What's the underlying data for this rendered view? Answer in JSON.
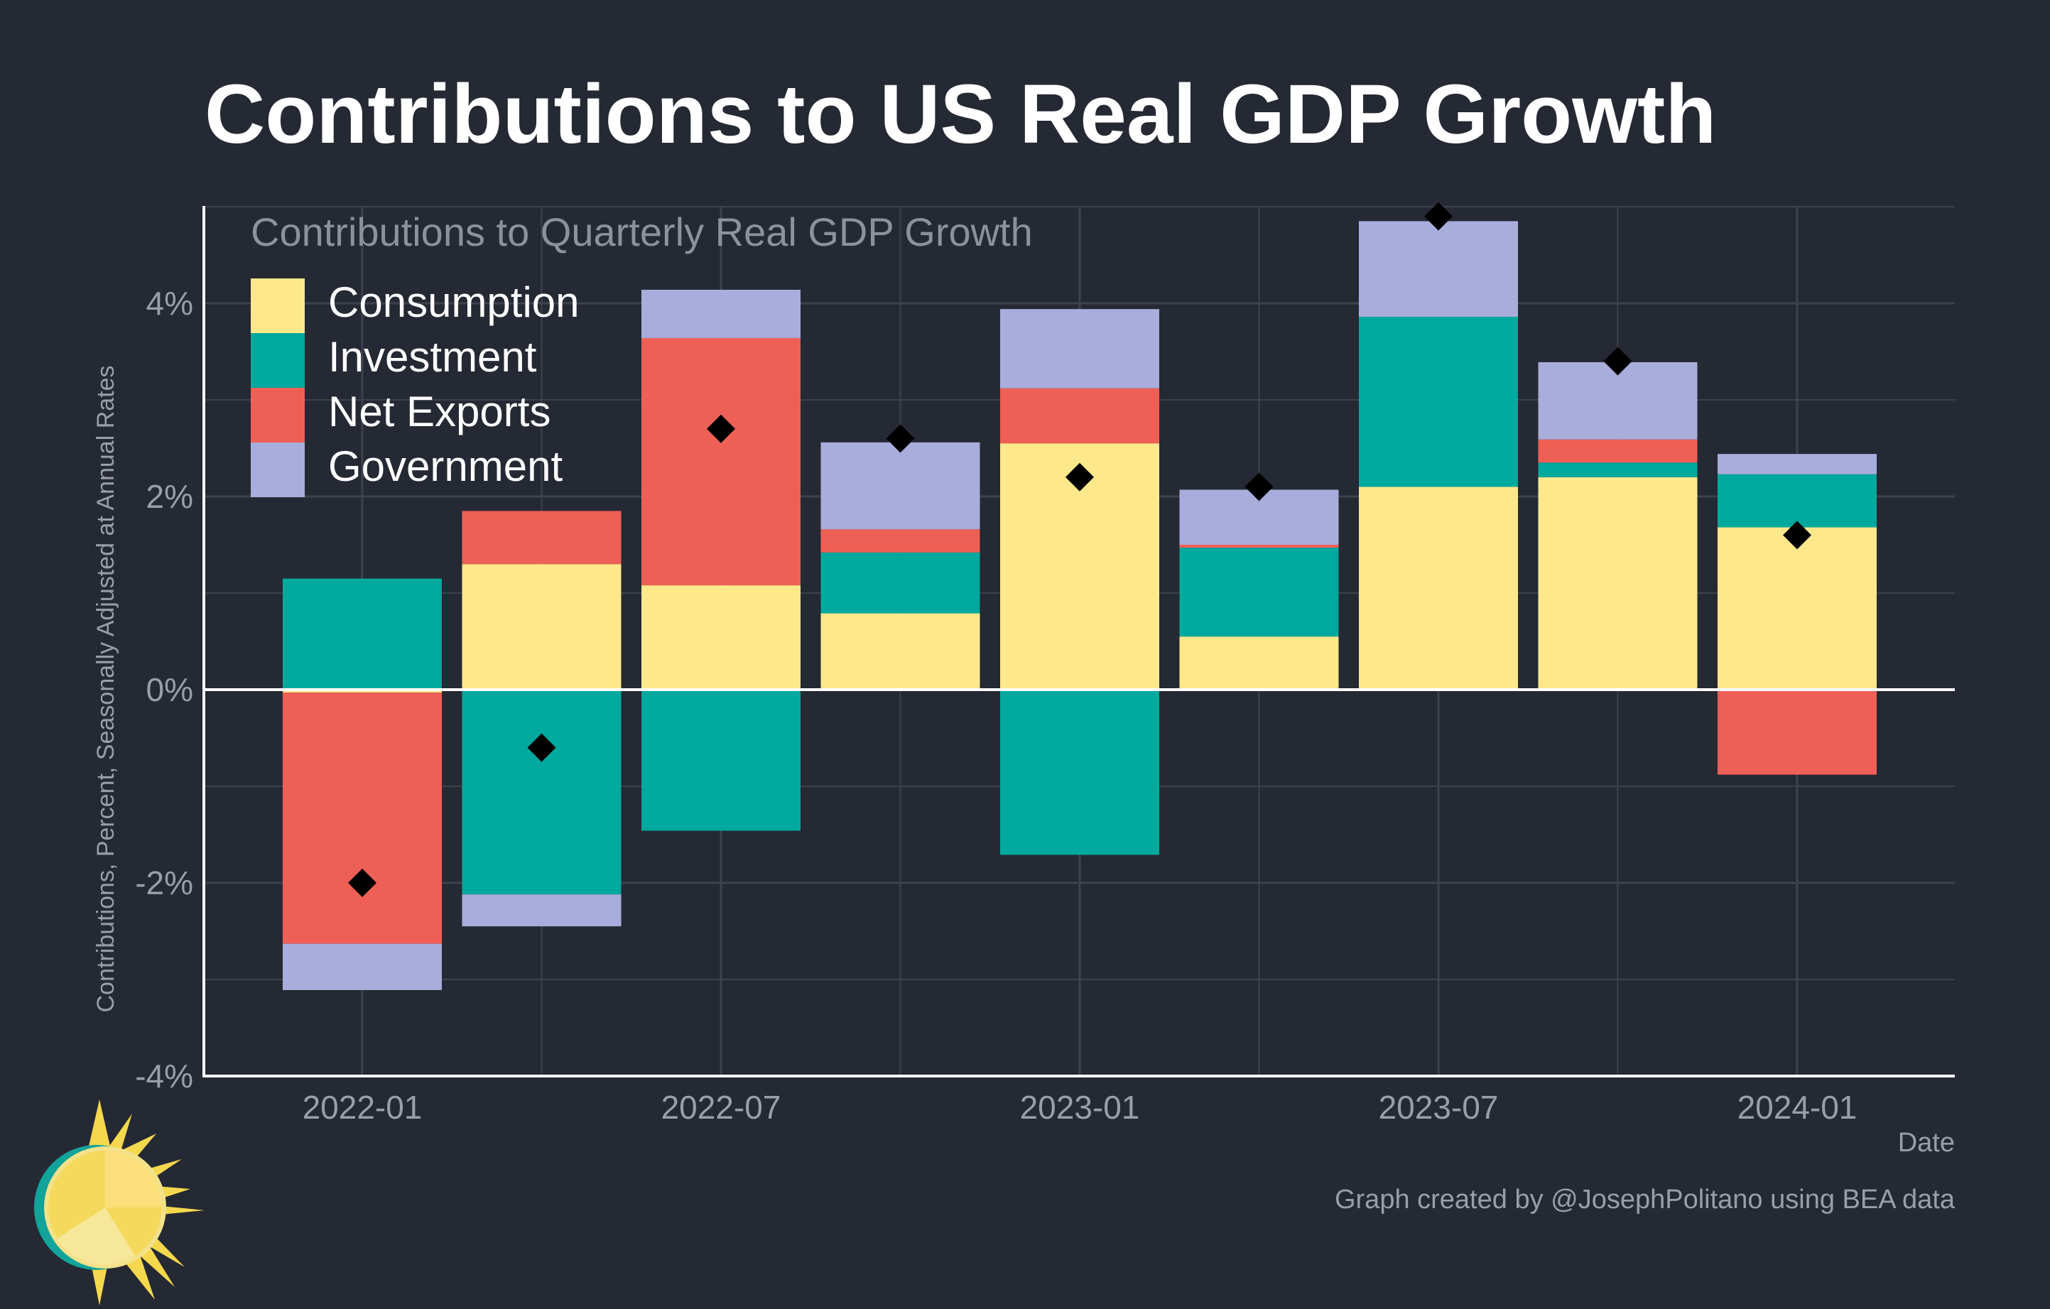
{
  "title": "Contributions to US Real GDP Growth",
  "credit": "Graph created by @JosephPolitano using BEA data",
  "chart_data": {
    "type": "bar",
    "stacked": true,
    "subtitle": "Contributions to Quarterly Real GDP Growth",
    "xlabel": "Date",
    "ylabel": "Contributions, Percent, Seasonally Adjusted at Annual Rates",
    "ylim": [
      -4,
      5
    ],
    "yticks": [
      -4,
      -2,
      0,
      2,
      4
    ],
    "ytick_labels": [
      "-4%",
      "-2%",
      "0%",
      "2%",
      "4%"
    ],
    "categories": [
      "2022-01",
      "2022-04",
      "2022-07",
      "2022-10",
      "2023-01",
      "2023-04",
      "2023-07",
      "2023-10",
      "2024-01"
    ],
    "xtick_labels": [
      "2022-01",
      "2022-07",
      "2023-01",
      "2023-07",
      "2024-01"
    ],
    "grid": true,
    "legend_position": "top-left",
    "series": [
      {
        "name": "Consumption",
        "color": "#fee88c",
        "values": [
          -0.03,
          1.3,
          1.08,
          0.79,
          2.55,
          0.55,
          2.1,
          2.2,
          1.68
        ]
      },
      {
        "name": "Investment",
        "color": "#00a99d",
        "values": [
          1.15,
          -2.12,
          -1.46,
          0.63,
          -1.71,
          0.92,
          1.76,
          0.15,
          0.55
        ]
      },
      {
        "name": "Net Exports",
        "color": "#ee6055",
        "values": [
          -2.6,
          0.55,
          2.56,
          0.24,
          0.57,
          0.03,
          0.0,
          0.24,
          -0.88
        ]
      },
      {
        "name": "Government",
        "color": "#a9addb",
        "values": [
          -0.48,
          -0.33,
          0.5,
          0.9,
          0.82,
          0.57,
          0.99,
          0.8,
          0.21
        ]
      }
    ],
    "total": {
      "marker": "diamond",
      "color": "#000000",
      "values": [
        -2.0,
        -0.6,
        2.7,
        2.6,
        2.2,
        2.1,
        4.9,
        3.4,
        1.6
      ]
    }
  }
}
